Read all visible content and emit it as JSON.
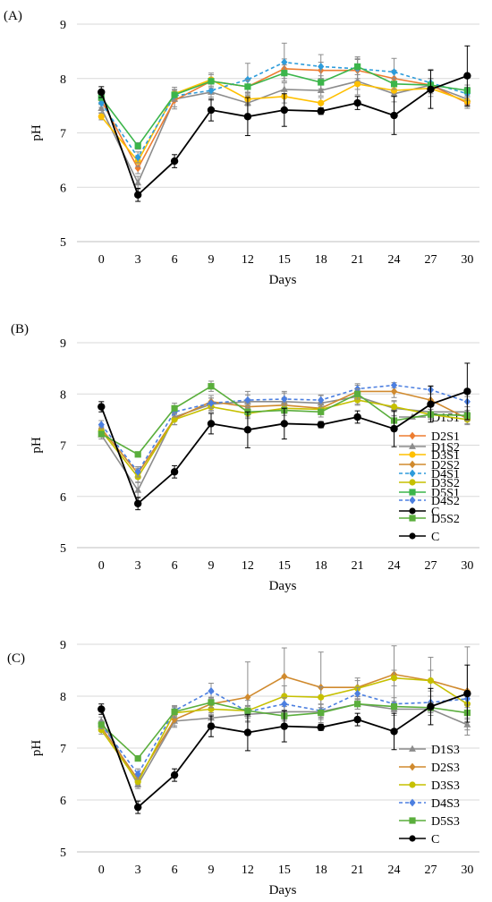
{
  "chart_data": [
    {
      "type": "line",
      "panel_label": "(A)",
      "xlabel": "Days",
      "ylabel": "pH",
      "x": [
        0,
        3,
        6,
        9,
        12,
        15,
        18,
        21,
        24,
        27,
        30
      ],
      "xlim": [
        -2,
        31
      ],
      "ylim": [
        5,
        9
      ],
      "yticks": [
        5,
        6,
        7,
        8,
        9
      ],
      "legend_position": "right",
      "series": [
        {
          "name": "D1S1",
          "color": "#8c8c8c",
          "marker": "triangle",
          "dash": "solid",
          "values": [
            7.45,
            6.08,
            7.62,
            7.75,
            7.55,
            7.8,
            7.78,
            7.95,
            7.72,
            7.88,
            7.62
          ],
          "errors": [
            0.08,
            0.12,
            0.18,
            0.15,
            0.2,
            0.12,
            0.1,
            0.25,
            0.15,
            0.12,
            0.1
          ]
        },
        {
          "name": "D2S1",
          "color": "#ed7d31",
          "marker": "diamond",
          "dash": "solid",
          "values": [
            7.6,
            6.35,
            7.6,
            7.95,
            7.85,
            8.18,
            8.15,
            8.15,
            8.0,
            7.88,
            7.55
          ],
          "errors": [
            0.08,
            0.1,
            0.12,
            0.12,
            0.15,
            0.18,
            0.15,
            0.2,
            0.15,
            0.12,
            0.1
          ]
        },
        {
          "name": "D3S1",
          "color": "#ffc000",
          "marker": "circle",
          "dash": "solid",
          "values": [
            7.3,
            6.48,
            7.72,
            7.98,
            7.62,
            7.67,
            7.55,
            7.9,
            7.78,
            7.82,
            7.58
          ],
          "errors": [
            0.06,
            0.1,
            0.12,
            0.12,
            0.12,
            0.12,
            0.1,
            0.1,
            0.1,
            0.1,
            0.1
          ]
        },
        {
          "name": "D4S1",
          "color": "#2e9cdb",
          "marker": "diamond",
          "dash": "dashed",
          "values": [
            7.55,
            6.55,
            7.68,
            7.78,
            7.98,
            8.3,
            8.22,
            8.18,
            8.12,
            7.92,
            7.72
          ],
          "errors": [
            0.08,
            0.1,
            0.1,
            0.12,
            0.3,
            0.35,
            0.22,
            0.22,
            0.25,
            0.25,
            0.12
          ]
        },
        {
          "name": "D5S1",
          "color": "#3bb54a",
          "marker": "square",
          "dash": "solid",
          "values": [
            7.65,
            6.76,
            7.7,
            7.95,
            7.85,
            8.1,
            7.93,
            8.22,
            7.9,
            7.88,
            7.78
          ],
          "errors": [
            0.05,
            0.06,
            0.1,
            0.12,
            0.12,
            0.15,
            0.12,
            0.15,
            0.1,
            0.12,
            0.1
          ]
        },
        {
          "name": "C",
          "color": "#000000",
          "marker": "circle",
          "dash": "solid",
          "values": [
            7.75,
            5.86,
            6.48,
            7.42,
            7.3,
            7.42,
            7.4,
            7.55,
            7.32,
            7.8,
            8.05
          ],
          "errors": [
            0.1,
            0.12,
            0.12,
            0.2,
            0.35,
            0.3,
            0.06,
            0.12,
            0.35,
            0.35,
            0.55
          ]
        }
      ]
    },
    {
      "type": "line",
      "panel_label": "(B)",
      "xlabel": "Days",
      "ylabel": "pH",
      "x": [
        0,
        3,
        6,
        9,
        12,
        15,
        18,
        21,
        24,
        27,
        30
      ],
      "xlim": [
        -2,
        31
      ],
      "ylim": [
        5,
        9
      ],
      "yticks": [
        5,
        6,
        7,
        8,
        9
      ],
      "legend_position": "right",
      "series": [
        {
          "name": "D1S2",
          "color": "#8c8c8c",
          "marker": "triangle",
          "dash": "solid",
          "values": [
            7.2,
            6.12,
            7.55,
            7.8,
            7.85,
            7.85,
            7.82,
            7.95,
            7.72,
            7.65,
            7.65
          ],
          "errors": [
            0.08,
            0.15,
            0.15,
            0.12,
            0.2,
            0.2,
            0.15,
            0.15,
            0.15,
            0.12,
            0.1
          ]
        },
        {
          "name": "D2S2",
          "color": "#d08a2e",
          "marker": "diamond",
          "dash": "solid",
          "values": [
            7.32,
            6.45,
            7.52,
            7.85,
            7.75,
            7.78,
            7.72,
            8.05,
            8.05,
            7.88,
            7.52
          ],
          "errors": [
            0.08,
            0.1,
            0.12,
            0.12,
            0.15,
            0.15,
            0.12,
            0.12,
            0.12,
            0.12,
            0.1
          ]
        },
        {
          "name": "D3S2",
          "color": "#c6c000",
          "marker": "circle",
          "dash": "solid",
          "values": [
            7.28,
            6.38,
            7.5,
            7.75,
            7.62,
            7.72,
            7.7,
            7.88,
            7.75,
            7.6,
            7.5
          ],
          "errors": [
            0.08,
            0.1,
            0.1,
            0.1,
            0.1,
            0.1,
            0.1,
            0.1,
            0.1,
            0.1,
            0.1
          ]
        },
        {
          "name": "D4S2",
          "color": "#4c7fe0",
          "marker": "diamond",
          "dash": "dashed",
          "values": [
            7.4,
            6.48,
            7.65,
            7.82,
            7.88,
            7.9,
            7.88,
            8.1,
            8.17,
            8.08,
            7.85
          ],
          "errors": [
            0.08,
            0.1,
            0.1,
            0.1,
            0.1,
            0.12,
            0.1,
            0.1,
            0.05,
            0.08,
            0.1
          ]
        },
        {
          "name": "D5S2",
          "color": "#5aae3c",
          "marker": "square",
          "dash": "solid",
          "values": [
            7.22,
            6.82,
            7.72,
            8.15,
            7.65,
            7.68,
            7.65,
            8.0,
            7.48,
            7.6,
            7.58
          ],
          "errors": [
            0.05,
            0.05,
            0.1,
            0.1,
            0.1,
            0.1,
            0.1,
            0.1,
            0.1,
            0.1,
            0.1
          ]
        },
        {
          "name": "C",
          "color": "#000000",
          "marker": "circle",
          "dash": "solid",
          "values": [
            7.75,
            5.86,
            6.48,
            7.42,
            7.3,
            7.42,
            7.4,
            7.55,
            7.32,
            7.8,
            8.05
          ],
          "errors": [
            0.1,
            0.12,
            0.12,
            0.2,
            0.35,
            0.3,
            0.06,
            0.12,
            0.35,
            0.35,
            0.55
          ]
        }
      ]
    },
    {
      "type": "line",
      "panel_label": "(C)",
      "xlabel": "Days",
      "ylabel": "pH",
      "x": [
        0,
        3,
        6,
        9,
        12,
        15,
        18,
        21,
        24,
        27,
        30
      ],
      "xlim": [
        -2,
        31
      ],
      "ylim": [
        5,
        9
      ],
      "yticks": [
        5,
        6,
        7,
        8,
        9
      ],
      "legend_position": "right",
      "series": [
        {
          "name": "D1S3",
          "color": "#8c8c8c",
          "marker": "triangle",
          "dash": "solid",
          "values": [
            7.52,
            6.3,
            7.52,
            7.58,
            7.65,
            7.7,
            7.7,
            7.85,
            7.75,
            7.75,
            7.45
          ],
          "errors": [
            0.08,
            0.08,
            0.12,
            0.1,
            0.15,
            0.15,
            0.15,
            0.1,
            0.12,
            0.12,
            0.1
          ]
        },
        {
          "name": "D2S3",
          "color": "#d08a2e",
          "marker": "diamond",
          "dash": "solid",
          "values": [
            7.4,
            6.4,
            7.55,
            7.85,
            7.98,
            8.38,
            8.17,
            8.17,
            8.42,
            8.3,
            8.1
          ],
          "errors": [
            0.08,
            0.1,
            0.12,
            0.12,
            0.68,
            0.55,
            0.68,
            0.18,
            0.55,
            0.45,
            0.85
          ]
        },
        {
          "name": "D3S3",
          "color": "#c6c000",
          "marker": "circle",
          "dash": "solid",
          "values": [
            7.35,
            6.35,
            7.68,
            7.75,
            7.72,
            8.0,
            7.98,
            8.15,
            8.35,
            8.3,
            7.85
          ],
          "errors": [
            0.08,
            0.1,
            0.1,
            0.1,
            0.2,
            0.2,
            0.2,
            0.15,
            0.15,
            0.2,
            0.2
          ]
        },
        {
          "name": "D4S3",
          "color": "#4c7fe0",
          "marker": "diamond",
          "dash": "dashed",
          "values": [
            7.45,
            6.5,
            7.72,
            8.1,
            7.7,
            7.85,
            7.72,
            8.05,
            7.85,
            7.88,
            7.95
          ],
          "errors": [
            0.08,
            0.1,
            0.1,
            0.15,
            0.12,
            0.12,
            0.12,
            0.12,
            0.12,
            0.12,
            0.12
          ]
        },
        {
          "name": "D5S3",
          "color": "#5aae3c",
          "marker": "square",
          "dash": "solid",
          "values": [
            7.45,
            6.8,
            7.7,
            7.88,
            7.72,
            7.62,
            7.68,
            7.85,
            7.8,
            7.78,
            7.68
          ],
          "errors": [
            0.05,
            0.05,
            0.1,
            0.1,
            0.1,
            0.1,
            0.1,
            0.1,
            0.1,
            0.1,
            0.1
          ]
        },
        {
          "name": "C",
          "color": "#000000",
          "marker": "circle",
          "dash": "solid",
          "values": [
            7.75,
            5.86,
            6.48,
            7.42,
            7.3,
            7.42,
            7.4,
            7.55,
            7.32,
            7.8,
            8.05
          ],
          "errors": [
            0.1,
            0.12,
            0.12,
            0.2,
            0.35,
            0.3,
            0.06,
            0.12,
            0.35,
            0.35,
            0.55
          ]
        }
      ]
    }
  ]
}
